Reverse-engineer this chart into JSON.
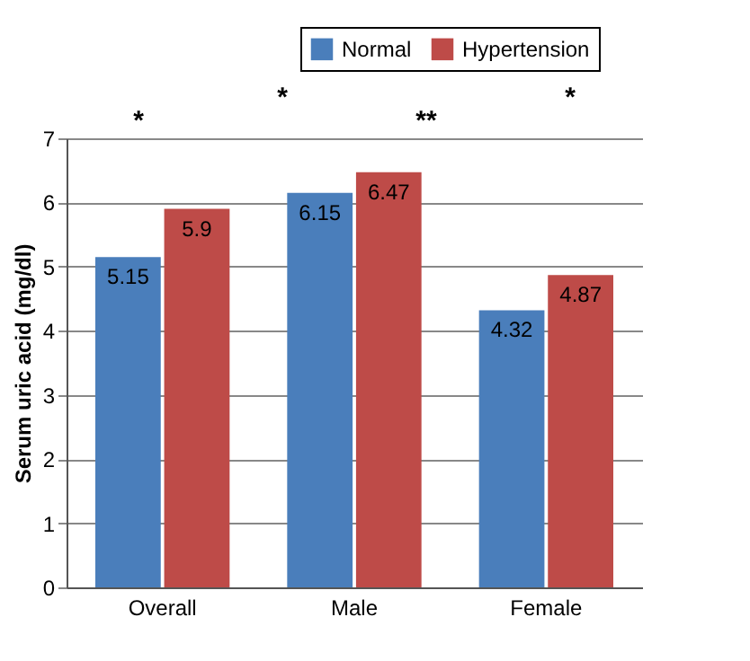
{
  "chart_data": {
    "type": "bar",
    "ylabel": "Serum uric acid (mg/dl)",
    "categories": [
      "Overall",
      "Male",
      "Female"
    ],
    "series": [
      {
        "name": "Normal",
        "color": "#4a7ebb",
        "values": [
          5.15,
          6.15,
          4.32
        ]
      },
      {
        "name": "Hypertension",
        "color": "#be4b48",
        "values": [
          5.9,
          6.47,
          4.87
        ]
      }
    ],
    "ylim": [
      0,
      7
    ],
    "yticks": [
      0,
      1,
      2,
      3,
      4,
      5,
      6,
      7
    ],
    "grid": "y",
    "legend": "top right",
    "data_labels": true,
    "annotations": [
      "*",
      "*",
      "**",
      "*"
    ]
  }
}
